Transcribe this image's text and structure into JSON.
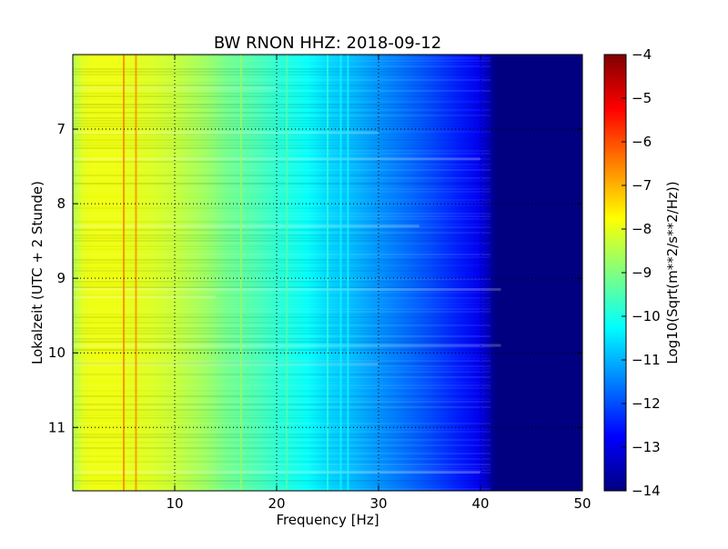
{
  "chart_data": {
    "type": "heatmap",
    "title": "BW RNON HHZ: 2018-09-12",
    "xlabel": "Frequency [Hz]",
    "ylabel": "Lokalzeit (UTC + 2 Stunde)",
    "xlim": [
      0,
      50
    ],
    "ylim": [
      6.0,
      11.85
    ],
    "y_inverted": true,
    "x_ticks": [
      10,
      20,
      30,
      40,
      50
    ],
    "y_ticks": [
      7,
      8,
      9,
      10,
      11
    ],
    "grid": true,
    "colormap": "jet",
    "colorbar": {
      "label": "Log10(Sqrt(m**2/s**2/Hz))",
      "range": [
        -14,
        -4
      ],
      "ticks": [
        -4,
        -5,
        -6,
        -7,
        -8,
        -9,
        -10,
        -11,
        -12,
        -13,
        -14
      ]
    },
    "spectrum_profile": {
      "frequency_hz": [
        0,
        1,
        2,
        4,
        6,
        8,
        10,
        13,
        15,
        18,
        20,
        23,
        25,
        28,
        30,
        33,
        35,
        38,
        40,
        41.5,
        45,
        50
      ],
      "level": [
        -8.5,
        -8.0,
        -7.9,
        -7.9,
        -8.0,
        -8.1,
        -8.3,
        -8.7,
        -9.1,
        -9.5,
        -9.8,
        -10.2,
        -10.6,
        -11.0,
        -11.3,
        -11.7,
        -12.0,
        -12.5,
        -12.9,
        -14.0,
        -14.0,
        -14.0
      ]
    },
    "narrowband_lines_hz": [
      5.0,
      6.2,
      16.5,
      21.0,
      25.0,
      26.3,
      27.0
    ],
    "time_bands": [
      {
        "t": 6.45,
        "f_max": 20
      },
      {
        "t": 7.05,
        "f_max": 30
      },
      {
        "t": 7.4,
        "f_max": 40
      },
      {
        "t": 8.3,
        "f_max": 34
      },
      {
        "t": 9.15,
        "f_max": 42
      },
      {
        "t": 9.25,
        "f_max": 14
      },
      {
        "t": 9.9,
        "f_max": 42
      },
      {
        "t": 10.15,
        "f_max": 30
      },
      {
        "t": 11.6,
        "f_max": 40
      }
    ]
  }
}
